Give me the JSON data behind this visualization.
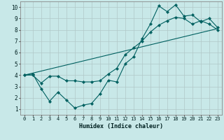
{
  "xlabel": "Humidex (Indice chaleur)",
  "bg_color": "#c8e8e8",
  "grid_color": "#b0c8c8",
  "line_color": "#006060",
  "xlim": [
    -0.5,
    23.5
  ],
  "ylim": [
    0.5,
    10.5
  ],
  "xticks": [
    0,
    1,
    2,
    3,
    4,
    5,
    6,
    7,
    8,
    9,
    10,
    11,
    12,
    13,
    14,
    15,
    16,
    17,
    18,
    19,
    20,
    21,
    22,
    23
  ],
  "yticks": [
    1,
    2,
    3,
    4,
    5,
    6,
    7,
    8,
    9,
    10
  ],
  "line1_x": [
    0,
    1,
    2,
    3,
    4,
    5,
    6,
    7,
    8,
    9,
    10,
    11,
    12,
    13,
    14,
    15,
    16,
    17,
    18,
    19,
    20,
    21,
    22,
    23
  ],
  "line1_y": [
    4.0,
    4.1,
    2.8,
    1.7,
    2.5,
    1.8,
    1.1,
    1.35,
    1.5,
    2.35,
    3.55,
    3.4,
    5.0,
    5.6,
    7.2,
    8.5,
    10.1,
    9.6,
    10.2,
    9.2,
    9.3,
    8.7,
    9.0,
    8.2
  ],
  "line2_x": [
    0,
    1,
    2,
    3,
    4,
    5,
    6,
    7,
    8,
    9,
    10,
    11,
    12,
    13,
    14,
    15,
    16,
    17,
    18,
    19,
    20,
    21,
    22,
    23
  ],
  "line2_y": [
    4.0,
    4.0,
    3.3,
    3.9,
    3.9,
    3.5,
    3.5,
    3.4,
    3.4,
    3.5,
    4.1,
    4.6,
    5.8,
    6.4,
    7.0,
    7.8,
    8.4,
    8.8,
    9.1,
    9.0,
    8.5,
    8.8,
    8.5,
    8.0
  ],
  "line3_x": [
    0,
    23
  ],
  "line3_y": [
    4.0,
    8.1
  ]
}
